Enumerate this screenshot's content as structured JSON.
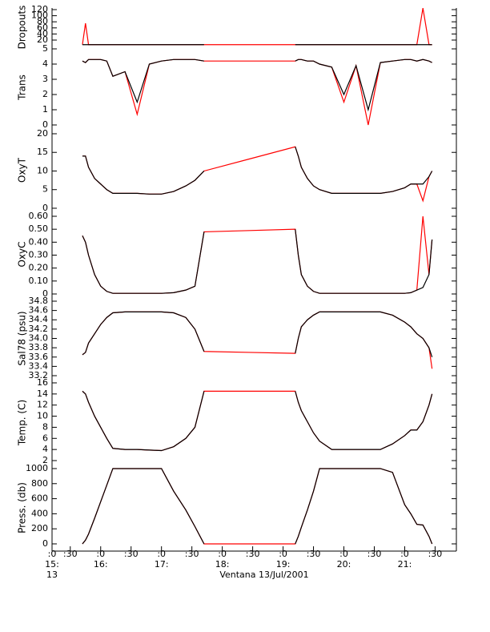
{
  "x_axis": {
    "xlim": [
      15.2,
      21.85
    ],
    "xticks": [
      {
        "value": 15.2,
        "label": ":0"
      },
      {
        "value": 15.5,
        "label": ":30"
      },
      {
        "value": 16,
        "label": ":0"
      },
      {
        "value": 16.5,
        "label": ":30"
      },
      {
        "value": 17,
        "label": ":0"
      },
      {
        "value": 17.5,
        "label": ":30"
      },
      {
        "value": 18,
        "label": ":0"
      },
      {
        "value": 18.5,
        "label": ":30"
      },
      {
        "value": 19,
        "label": ":0"
      },
      {
        "value": 19.5,
        "label": ":30"
      },
      {
        "value": 20,
        "label": ":0"
      },
      {
        "value": 20.5,
        "label": ":30"
      },
      {
        "value": 21,
        "label": ":0"
      },
      {
        "value": 21.5,
        "label": ":30"
      }
    ],
    "hour_labels": [
      {
        "value": 15.2,
        "label": "15:"
      },
      {
        "value": 16,
        "label": "16:"
      },
      {
        "value": 17,
        "label": "17:"
      },
      {
        "value": 18,
        "label": "18:"
      },
      {
        "value": 19,
        "label": "19:"
      },
      {
        "value": 20,
        "label": "20:"
      },
      {
        "value": 21,
        "label": "21:"
      }
    ],
    "first_minute": "13",
    "label": "Ventana 13/Jul/2001"
  },
  "chart_data": [
    {
      "type": "line",
      "ylabel": "Dropouts",
      "ylim": [
        -1,
        125.3
      ],
      "yticks": [
        20,
        40,
        60,
        80,
        100,
        120
      ],
      "x": [
        15.7,
        15.75,
        15.8,
        15.9,
        16.0,
        16.1,
        16.2,
        16.4,
        16.6,
        16.8,
        17.0,
        17.2,
        17.4,
        17.55,
        17.7,
        18.45,
        19.2,
        19.25,
        19.3,
        19.4,
        19.5,
        19.6,
        19.8,
        20.0,
        20.2,
        20.4,
        20.6,
        20.8,
        21.0,
        21.1,
        21.2,
        21.3,
        21.4,
        21.45
      ],
      "series": [
        {
          "color": "#ff0000",
          "values": [
            5,
            75,
            5,
            5,
            5,
            5,
            5,
            5,
            5,
            5,
            5,
            5,
            5,
            5,
            5,
            5,
            5,
            5,
            5,
            5,
            5,
            5,
            5,
            5,
            5,
            5,
            5,
            5,
            5,
            5,
            5,
            125,
            5,
            5
          ]
        },
        {
          "color": "#000000",
          "values": [
            5,
            5,
            5,
            5,
            5,
            5,
            5,
            5,
            5,
            5,
            5,
            5,
            5,
            5,
            5,
            null,
            5,
            5,
            5,
            5,
            5,
            5,
            5,
            5,
            5,
            5,
            5,
            5,
            5,
            5,
            5,
            5,
            5,
            5
          ]
        }
      ]
    },
    {
      "type": "line",
      "ylabel": "Trans",
      "ylim": [
        -0.21,
        5.158
      ],
      "yticks": [
        0,
        1,
        2,
        3,
        4,
        5
      ],
      "x": [
        15.7,
        15.75,
        15.8,
        15.9,
        16.0,
        16.1,
        16.2,
        16.4,
        16.6,
        16.8,
        17.0,
        17.2,
        17.4,
        17.55,
        17.7,
        18.45,
        19.2,
        19.25,
        19.3,
        19.4,
        19.5,
        19.6,
        19.8,
        20.0,
        20.2,
        20.4,
        20.6,
        20.8,
        21.0,
        21.1,
        21.2,
        21.3,
        21.4,
        21.45
      ],
      "series": [
        {
          "color": "#ff0000",
          "values": [
            4.2,
            4.1,
            4.3,
            4.3,
            4.3,
            4.2,
            3.2,
            3.5,
            0.7,
            4.0,
            4.2,
            4.3,
            4.3,
            4.3,
            4.2,
            4.2,
            4.2,
            4.3,
            4.3,
            4.2,
            4.2,
            4.0,
            3.8,
            1.5,
            3.9,
            0,
            4.1,
            4.2,
            4.3,
            4.3,
            4.2,
            4.3,
            4.2,
            4.1
          ]
        },
        {
          "color": "#000000",
          "values": [
            4.2,
            4.1,
            4.3,
            4.3,
            4.3,
            4.2,
            3.2,
            3.5,
            1.5,
            4.0,
            4.2,
            4.3,
            4.3,
            4.3,
            4.2,
            null,
            4.2,
            4.3,
            4.3,
            4.2,
            4.2,
            4.0,
            3.8,
            2.0,
            3.9,
            1.0,
            4.1,
            4.2,
            4.3,
            4.3,
            4.2,
            4.3,
            4.2,
            4.1
          ]
        }
      ]
    },
    {
      "type": "line",
      "ylabel": "OxyT",
      "ylim": [
        -1.08,
        21.5
      ],
      "yticks": [
        0,
        5,
        10,
        15,
        20
      ],
      "x": [
        15.7,
        15.75,
        15.8,
        15.9,
        16.0,
        16.1,
        16.2,
        16.4,
        16.6,
        16.8,
        17.0,
        17.2,
        17.4,
        17.55,
        17.7,
        18.45,
        19.2,
        19.25,
        19.3,
        19.4,
        19.5,
        19.6,
        19.8,
        20.0,
        20.2,
        20.4,
        20.6,
        20.8,
        21.0,
        21.1,
        21.2,
        21.3,
        21.4,
        21.45
      ],
      "series": [
        {
          "color": "#ff0000",
          "values": [
            14,
            14,
            11,
            8,
            6.5,
            5,
            4,
            4,
            4,
            3.8,
            3.8,
            4.5,
            6,
            7.5,
            10,
            13.25,
            16.5,
            14,
            11,
            8,
            6,
            5,
            4,
            4,
            4,
            4,
            4,
            4.5,
            5.5,
            6.5,
            6.5,
            2,
            8.5,
            10
          ]
        },
        {
          "color": "#000000",
          "values": [
            14,
            14,
            11,
            8,
            6.5,
            5,
            4,
            4,
            4,
            3.8,
            3.8,
            4.5,
            6,
            7.5,
            10,
            null,
            16.5,
            14,
            11,
            8,
            6,
            5,
            4,
            4,
            4,
            4,
            4,
            4.5,
            5.5,
            6.5,
            6.5,
            6.5,
            8.5,
            10
          ]
        }
      ]
    },
    {
      "type": "line",
      "ylabel": "OxyC",
      "ylim": [
        -0.0186,
        0.631
      ],
      "yticks": [
        0,
        {
          "value": 0.1,
          "label": "0.10"
        },
        {
          "value": 0.2,
          "label": "0.20"
        },
        {
          "value": 0.3,
          "label": "0.30"
        },
        {
          "value": 0.4,
          "label": "0.40"
        },
        {
          "value": 0.5,
          "label": "0.50"
        },
        {
          "value": 0.6,
          "label": "0.60"
        }
      ],
      "x": [
        15.7,
        15.75,
        15.8,
        15.9,
        16.0,
        16.1,
        16.2,
        16.4,
        16.6,
        16.8,
        17.0,
        17.2,
        17.4,
        17.55,
        17.7,
        18.45,
        19.2,
        19.25,
        19.3,
        19.4,
        19.5,
        19.6,
        19.8,
        20.0,
        20.2,
        20.4,
        20.6,
        20.8,
        21.0,
        21.1,
        21.2,
        21.3,
        21.4,
        21.45
      ],
      "series": [
        {
          "color": "#ff0000",
          "values": [
            0.45,
            0.4,
            0.3,
            0.15,
            0.06,
            0.02,
            0.005,
            0.005,
            0.005,
            0.005,
            0.005,
            0.01,
            0.03,
            0.06,
            0.48,
            0.49,
            0.5,
            0.3,
            0.15,
            0.06,
            0.02,
            0.005,
            0.005,
            0.005,
            0.005,
            0.005,
            0.005,
            0.005,
            0.005,
            0.01,
            0.03,
            0.6,
            0.15,
            0.42
          ]
        },
        {
          "color": "#000000",
          "values": [
            0.45,
            0.4,
            0.3,
            0.15,
            0.06,
            0.02,
            0.005,
            0.005,
            0.005,
            0.005,
            0.005,
            0.01,
            0.03,
            0.06,
            0.48,
            null,
            0.5,
            0.3,
            0.15,
            0.06,
            0.02,
            0.005,
            0.005,
            0.005,
            0.005,
            0.005,
            0.005,
            0.005,
            0.005,
            0.01,
            0.03,
            0.05,
            0.15,
            0.42
          ]
        }
      ]
    },
    {
      "type": "line",
      "ylabel": "Sal78 (psu)",
      "ylim": [
        33.097,
        34.903
      ],
      "yticks": [
        33.2,
        33.4,
        33.6,
        33.8,
        {
          "value": 34.0,
          "label": "34.0"
        },
        34.2,
        34.4,
        34.6,
        34.8
      ],
      "x": [
        15.7,
        15.75,
        15.8,
        15.9,
        16.0,
        16.1,
        16.2,
        16.4,
        16.6,
        16.8,
        17.0,
        17.2,
        17.4,
        17.55,
        17.7,
        18.45,
        19.2,
        19.25,
        19.3,
        19.4,
        19.5,
        19.6,
        19.8,
        20.0,
        20.2,
        20.4,
        20.6,
        20.8,
        21.0,
        21.1,
        21.2,
        21.3,
        21.4,
        21.45
      ],
      "series": [
        {
          "color": "#ff0000",
          "values": [
            33.65,
            33.7,
            33.9,
            34.1,
            34.3,
            34.45,
            34.55,
            34.57,
            34.57,
            34.57,
            34.57,
            34.55,
            34.45,
            34.2,
            33.72,
            33.7,
            33.68,
            34.0,
            34.25,
            34.4,
            34.5,
            34.57,
            34.57,
            34.57,
            34.57,
            34.57,
            34.57,
            34.5,
            34.35,
            34.25,
            34.1,
            34.0,
            33.8,
            33.35
          ]
        },
        {
          "color": "#000000",
          "values": [
            33.65,
            33.7,
            33.9,
            34.1,
            34.3,
            34.45,
            34.55,
            34.57,
            34.57,
            34.57,
            34.57,
            34.55,
            34.45,
            34.2,
            33.72,
            null,
            33.68,
            34.0,
            34.25,
            34.4,
            34.5,
            34.57,
            34.57,
            34.57,
            34.57,
            34.57,
            34.57,
            34.5,
            34.35,
            34.25,
            34.1,
            34.0,
            33.8,
            33.6
          ]
        }
      ]
    },
    {
      "type": "line",
      "ylabel": "Temp. (C)",
      "ylim": [
        1.28,
        16.43
      ],
      "yticks": [
        2,
        4,
        6,
        8,
        10,
        12,
        14,
        16
      ],
      "x": [
        15.7,
        15.75,
        15.8,
        15.9,
        16.0,
        16.1,
        16.2,
        16.4,
        16.6,
        16.8,
        17.0,
        17.2,
        17.4,
        17.55,
        17.7,
        18.45,
        19.2,
        19.25,
        19.3,
        19.4,
        19.5,
        19.6,
        19.8,
        20.0,
        20.2,
        20.4,
        20.6,
        20.8,
        21.0,
        21.1,
        21.2,
        21.3,
        21.4,
        21.45
      ],
      "series": [
        {
          "color": "#ff0000",
          "values": [
            14.5,
            14,
            12.5,
            10,
            8,
            6,
            4.2,
            4,
            4,
            3.9,
            3.8,
            4.5,
            6,
            8,
            14.5,
            14.5,
            14.5,
            12.5,
            11,
            9,
            7,
            5.5,
            4,
            4,
            4,
            4,
            4,
            5,
            6.5,
            7.5,
            7.5,
            9,
            12,
            14
          ]
        },
        {
          "color": "#000000",
          "values": [
            14.5,
            14,
            12.5,
            10,
            8,
            6,
            4.2,
            4,
            4,
            3.9,
            3.8,
            4.5,
            6,
            8,
            14.5,
            null,
            14.5,
            12.5,
            11,
            9,
            7,
            5.5,
            4,
            4,
            4,
            4,
            4,
            5,
            6.5,
            7.5,
            7.5,
            9,
            12,
            14
          ]
        }
      ]
    },
    {
      "type": "line",
      "ylabel": "Press. (db)",
      "ylim": [
        -96,
        1053
      ],
      "yticks": [
        0,
        200,
        400,
        600,
        800,
        1000
      ],
      "x": [
        15.7,
        15.75,
        15.8,
        15.9,
        16.0,
        16.1,
        16.2,
        16.4,
        16.6,
        16.8,
        17.0,
        17.2,
        17.4,
        17.55,
        17.7,
        18.45,
        19.2,
        19.25,
        19.3,
        19.4,
        19.5,
        19.6,
        19.8,
        20.0,
        20.2,
        20.4,
        20.6,
        20.8,
        21.0,
        21.1,
        21.2,
        21.3,
        21.4,
        21.45
      ],
      "series": [
        {
          "color": "#ff0000",
          "values": [
            0,
            50,
            130,
            340,
            560,
            780,
            1000,
            1000,
            1000,
            1000,
            1000,
            700,
            450,
            230,
            0,
            0,
            0,
            100,
            220,
            450,
            700,
            1000,
            1000,
            1000,
            1000,
            1000,
            1000,
            950,
            520,
            400,
            260,
            250,
            100,
            0
          ]
        },
        {
          "color": "#000000",
          "values": [
            0,
            50,
            130,
            340,
            560,
            780,
            1000,
            1000,
            1000,
            1000,
            1000,
            700,
            450,
            230,
            0,
            null,
            0,
            100,
            220,
            450,
            700,
            1000,
            1000,
            1000,
            1000,
            1000,
            1000,
            950,
            520,
            400,
            260,
            250,
            100,
            0
          ]
        }
      ]
    }
  ]
}
